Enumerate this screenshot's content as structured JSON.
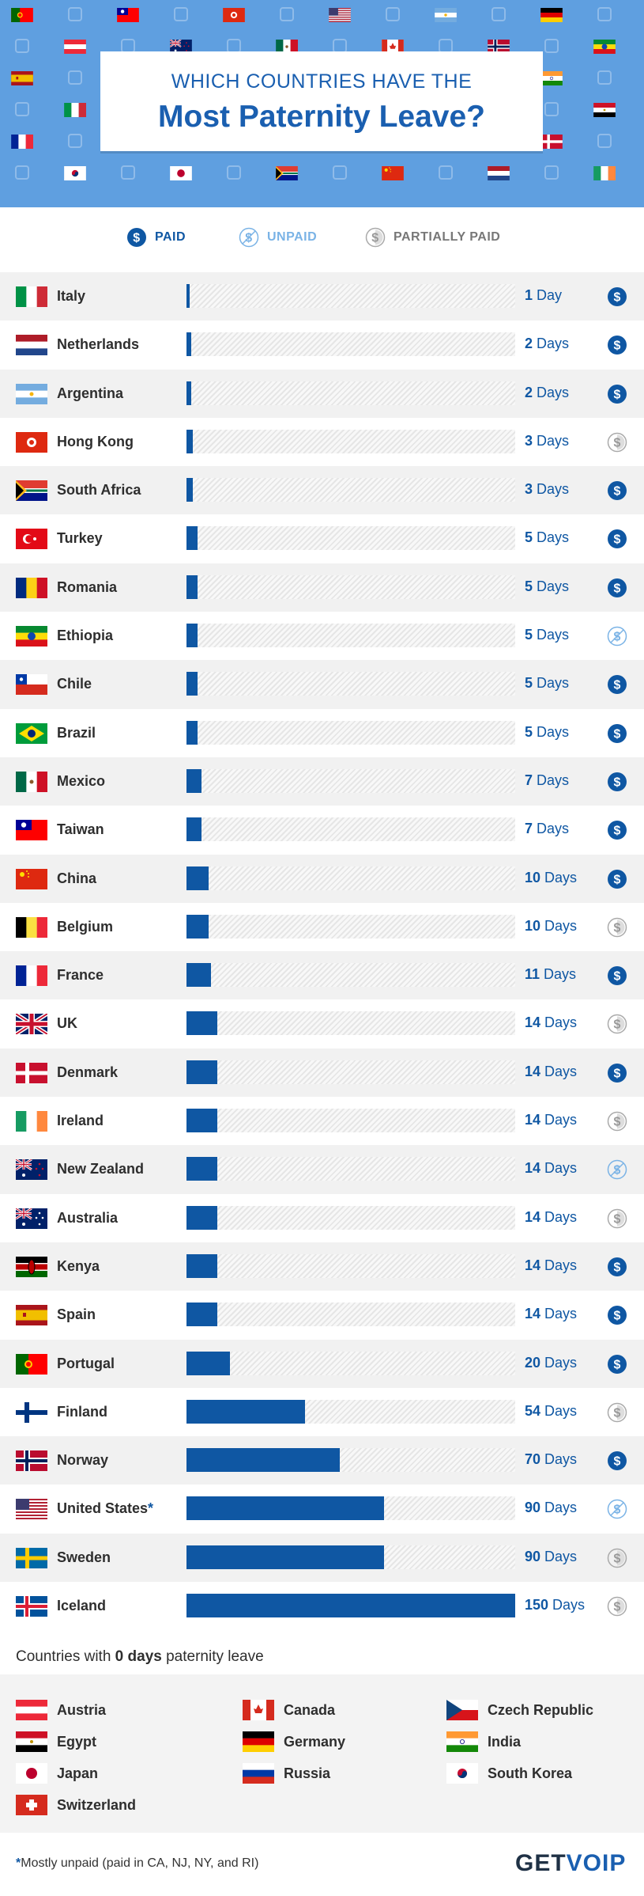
{
  "title": {
    "line1": "WHICH COUNTRIES HAVE THE",
    "line2": "Most Paternity Leave?"
  },
  "legend": {
    "paid": "PAID",
    "unpaid": "UNPAID",
    "partially_paid": "PARTIALLY PAID"
  },
  "colors": {
    "hero": "#5f9fe0",
    "brand": "#1a5fb0",
    "bar": "#0f57a3",
    "unpaid": "#7ab3e6",
    "partial": "#aaaaaa"
  },
  "chart_data": {
    "type": "bar",
    "orientation": "horizontal",
    "categories": [
      "Italy",
      "Netherlands",
      "Argentina",
      "Hong Kong",
      "South Africa",
      "Turkey",
      "Romania",
      "Ethiopia",
      "Chile",
      "Brazil",
      "Mexico",
      "Taiwan",
      "China",
      "Belgium",
      "France",
      "UK",
      "Denmark",
      "Ireland",
      "New Zealand",
      "Australia",
      "Kenya",
      "Spain",
      "Portugal",
      "Finland",
      "Norway",
      "United States*",
      "Sweden",
      "Iceland"
    ],
    "values": [
      1,
      2,
      2,
      3,
      3,
      5,
      5,
      5,
      5,
      5,
      7,
      7,
      10,
      10,
      11,
      14,
      14,
      14,
      14,
      14,
      14,
      14,
      20,
      54,
      70,
      90,
      90,
      150
    ],
    "value_labels": [
      "1",
      "2",
      "2",
      "3",
      "3",
      "5",
      "5",
      "5",
      "5",
      "5",
      "7",
      "7",
      "10",
      "10",
      "11",
      "14",
      "14",
      "14",
      "14",
      "14",
      "14",
      "14",
      "20",
      "54",
      "70",
      "90",
      "90",
      "150"
    ],
    "units": [
      "Day",
      "Days",
      "Days",
      "Days",
      "Days",
      "Days",
      "Days",
      "Days",
      "Days",
      "Days",
      "Days",
      "Days",
      "Days",
      "Days",
      "Days",
      "Days",
      "Days",
      "Days",
      "Days",
      "Days",
      "Days",
      "Days",
      "Days",
      "Days",
      "Days",
      "Days",
      "Days",
      "Days"
    ],
    "pay_type": [
      "paid",
      "paid",
      "paid",
      "partial",
      "paid",
      "paid",
      "paid",
      "unpaid",
      "paid",
      "paid",
      "paid",
      "paid",
      "paid",
      "partial",
      "paid",
      "partial",
      "paid",
      "partial",
      "unpaid",
      "partial",
      "paid",
      "paid",
      "paid",
      "partial",
      "paid",
      "unpaid",
      "partial",
      "partial"
    ],
    "xlim": [
      0,
      150
    ]
  },
  "zero_days": {
    "title_prefix": "Countries with ",
    "title_bold": "0 days",
    "title_suffix": " paternity leave",
    "countries": [
      "Austria",
      "Canada",
      "Czech Republic",
      "Egypt",
      "Germany",
      "India",
      "Japan",
      "Russia",
      "South Korea",
      "Switzerland"
    ]
  },
  "footnote": {
    "asterisk": "*",
    "text": "Mostly unpaid (paid in CA, NJ, NY, and RI)"
  },
  "logo": {
    "part1": "GET",
    "part2": "VOIP"
  }
}
